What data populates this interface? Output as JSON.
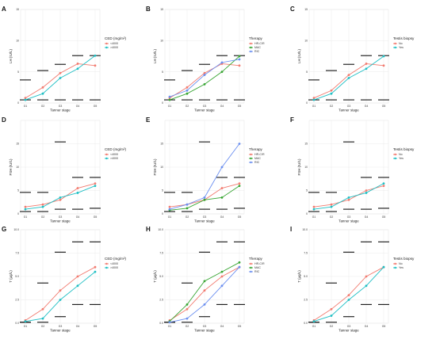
{
  "colors": {
    "ced_low": "#f27b70",
    "ced_high": "#1fbfc4",
    "hr_cr": "#f27b70",
    "mac": "#37a532",
    "ric": "#6b8ff0",
    "testis_no": "#f27b70",
    "testis_yes": "#1fbfc4",
    "reference": "#111111",
    "grid": "#ebebeb"
  },
  "groups": {
    "ced": {
      "title": "CED (mg/m²)",
      "items": [
        {
          "label": "<4000",
          "color": "#f27b70"
        },
        {
          "label": ">4000",
          "color": "#1fbfc4"
        }
      ]
    },
    "therapy": {
      "title": "Therapy",
      "items": [
        {
          "label": "HR-C/R",
          "color": "#f27b70"
        },
        {
          "label": "MAC",
          "color": "#37a532"
        },
        {
          "label": "RIC",
          "color": "#6b8ff0"
        }
      ]
    },
    "testis": {
      "title": "Testis biopsy",
      "items": [
        {
          "label": "No",
          "color": "#f27b70"
        },
        {
          "label": "Yes",
          "color": "#1fbfc4"
        }
      ]
    }
  },
  "chart_data": [
    {
      "panel": "A",
      "type": "line",
      "xlabel": "Tanner stage",
      "ylabel": "LH (IU/L)",
      "categories": [
        "G1",
        "G2",
        "G3",
        "G4",
        "G5"
      ],
      "ylim": [
        0,
        15
      ],
      "yticks": [
        "0",
        "5",
        "10",
        "15"
      ],
      "legend": "ced",
      "series": [
        {
          "name": "<4000",
          "values": [
            0.8,
            2.5,
            4.8,
            6.3,
            6.0
          ]
        },
        {
          "name": ">4000",
          "values": [
            0.5,
            1.5,
            4.0,
            5.5,
            7.6
          ]
        }
      ],
      "reference": [
        {
          "x": 1,
          "low": 0.5,
          "high": 3.7
        },
        {
          "x": 2,
          "low": 0.5,
          "high": 5.2
        },
        {
          "x": 3,
          "low": 0.5,
          "high": 6.2
        },
        {
          "x": 4,
          "low": 0.5,
          "high": 7.6
        },
        {
          "x": 5,
          "low": 0.5,
          "high": 7.6
        }
      ]
    },
    {
      "panel": "B",
      "type": "line",
      "xlabel": "Tanner stage",
      "ylabel": "LH (IU/L)",
      "categories": [
        "G1",
        "G2",
        "G3",
        "G4",
        "G5"
      ],
      "ylim": [
        0,
        15
      ],
      "yticks": [
        "0",
        "5",
        "10",
        "15"
      ],
      "legend": "therapy",
      "series": [
        {
          "name": "HR-C/R",
          "values": [
            0.8,
            2.5,
            4.8,
            6.3,
            6.0
          ]
        },
        {
          "name": "MAC",
          "values": [
            0.5,
            1.5,
            3.0,
            5.0,
            7.5
          ]
        },
        {
          "name": "RIC",
          "values": [
            1.0,
            2.0,
            4.5,
            6.5,
            7.0
          ]
        }
      ],
      "reference": [
        {
          "x": 1,
          "low": 0.5,
          "high": 3.7
        },
        {
          "x": 2,
          "low": 0.5,
          "high": 5.2
        },
        {
          "x": 3,
          "low": 0.5,
          "high": 6.2
        },
        {
          "x": 4,
          "low": 0.5,
          "high": 7.6
        },
        {
          "x": 5,
          "low": 0.5,
          "high": 7.6
        }
      ]
    },
    {
      "panel": "C",
      "type": "line",
      "xlabel": "Tanner stage",
      "ylabel": "LH (IU/L)",
      "categories": [
        "G1",
        "G2",
        "G3",
        "G4",
        "G5"
      ],
      "ylim": [
        0,
        15
      ],
      "yticks": [
        "0",
        "5",
        "10",
        "15"
      ],
      "legend": "testis",
      "series": [
        {
          "name": "No",
          "values": [
            0.8,
            2.0,
            4.5,
            6.3,
            6.0
          ]
        },
        {
          "name": "Yes",
          "values": [
            0.5,
            1.5,
            4.0,
            5.5,
            7.5
          ]
        }
      ],
      "reference": [
        {
          "x": 1,
          "low": 0.5,
          "high": 3.7
        },
        {
          "x": 2,
          "low": 0.5,
          "high": 5.2
        },
        {
          "x": 3,
          "low": 0.5,
          "high": 6.2
        },
        {
          "x": 4,
          "low": 0.5,
          "high": 7.6
        },
        {
          "x": 5,
          "low": 0.5,
          "high": 7.6
        }
      ]
    },
    {
      "panel": "D",
      "type": "line",
      "xlabel": "Tanner stage",
      "ylabel": "FSH (IU/L)",
      "categories": [
        "G1",
        "G2",
        "G3",
        "G4",
        "G5"
      ],
      "ylim": [
        0,
        20
      ],
      "yticks": [
        "0",
        "5",
        "10",
        "15"
      ],
      "legend": "ced",
      "series": [
        {
          "name": "<4000",
          "values": [
            1.5,
            2.0,
            3.0,
            5.5,
            6.5
          ]
        },
        {
          "name": ">4000",
          "values": [
            1.0,
            1.5,
            3.5,
            4.5,
            6.0
          ]
        }
      ],
      "reference": [
        {
          "x": 1,
          "low": 0.5,
          "high": 4.6
        },
        {
          "x": 2,
          "low": 0.5,
          "high": 4.6
        },
        {
          "x": 3,
          "low": 1.0,
          "high": 15.4
        },
        {
          "x": 4,
          "low": 1.0,
          "high": 7.8
        },
        {
          "x": 5,
          "low": 1.2,
          "high": 7.8
        }
      ]
    },
    {
      "panel": "E",
      "type": "line",
      "xlabel": "Tanner stage",
      "ylabel": "FSH (IU/L)",
      "categories": [
        "G1",
        "G2",
        "G3",
        "G4",
        "G5"
      ],
      "ylim": [
        0,
        20
      ],
      "yticks": [
        "0",
        "5",
        "10",
        "15"
      ],
      "legend": "therapy",
      "series": [
        {
          "name": "HR-C/R",
          "values": [
            1.5,
            2.0,
            3.0,
            5.5,
            6.5
          ]
        },
        {
          "name": "MAC",
          "values": [
            0.8,
            1.2,
            3.0,
            3.5,
            6.0
          ]
        },
        {
          "name": "RIC",
          "values": [
            1.0,
            2.0,
            3.5,
            10.0,
            15.0
          ]
        }
      ],
      "reference": [
        {
          "x": 1,
          "low": 0.5,
          "high": 4.6
        },
        {
          "x": 2,
          "low": 0.5,
          "high": 4.6
        },
        {
          "x": 3,
          "low": 1.0,
          "high": 15.4
        },
        {
          "x": 4,
          "low": 1.0,
          "high": 7.8
        },
        {
          "x": 5,
          "low": 1.2,
          "high": 7.8
        }
      ]
    },
    {
      "panel": "F",
      "type": "line",
      "xlabel": "Tanner stage",
      "ylabel": "FSH (IU/L)",
      "categories": [
        "G1",
        "G2",
        "G3",
        "G4",
        "G5"
      ],
      "ylim": [
        0,
        20
      ],
      "yticks": [
        "0",
        "5",
        "10",
        "15"
      ],
      "legend": "testis",
      "series": [
        {
          "name": "No",
          "values": [
            1.5,
            2.0,
            3.0,
            5.0,
            6.0
          ]
        },
        {
          "name": "Yes",
          "values": [
            1.0,
            1.5,
            3.5,
            4.5,
            6.5
          ]
        }
      ],
      "reference": [
        {
          "x": 1,
          "low": 0.5,
          "high": 4.6
        },
        {
          "x": 2,
          "low": 0.5,
          "high": 4.6
        },
        {
          "x": 3,
          "low": 1.0,
          "high": 15.4
        },
        {
          "x": 4,
          "low": 1.0,
          "high": 7.8
        },
        {
          "x": 5,
          "low": 1.2,
          "high": 7.8
        }
      ]
    },
    {
      "panel": "G",
      "type": "line",
      "xlabel": "Tanner stage",
      "ylabel": "T (µg/L)",
      "categories": [
        "G1",
        "G2",
        "G3",
        "G4",
        "G5"
      ],
      "ylim": [
        0,
        10
      ],
      "yticks": [
        "0.0",
        "2.5",
        "5.0",
        "7.5",
        "10.0"
      ],
      "legend": "ced",
      "series": [
        {
          "name": "<4000",
          "values": [
            0.3,
            1.5,
            3.5,
            5.0,
            6.0
          ]
        },
        {
          "name": ">4000",
          "values": [
            0.2,
            0.5,
            2.5,
            4.0,
            5.5
          ]
        }
      ],
      "reference": [
        {
          "x": 1,
          "low": 0.1,
          "high": 0.1
        },
        {
          "x": 2,
          "low": 0.1,
          "high": 4.3
        },
        {
          "x": 3,
          "low": 0.7,
          "high": 7.6
        },
        {
          "x": 4,
          "low": 2.0,
          "high": 8.7
        },
        {
          "x": 5,
          "low": 2.0,
          "high": 8.7
        }
      ]
    },
    {
      "panel": "H",
      "type": "line",
      "xlabel": "Tanner stage",
      "ylabel": "T (µg/L)",
      "categories": [
        "G1",
        "G2",
        "G3",
        "G4",
        "G5"
      ],
      "ylim": [
        0,
        10
      ],
      "yticks": [
        "0.0",
        "2.5",
        "5.0",
        "7.5",
        "10.0"
      ],
      "legend": "therapy",
      "series": [
        {
          "name": "HR-C/R",
          "values": [
            0.3,
            1.5,
            3.5,
            5.0,
            6.0
          ]
        },
        {
          "name": "MAC",
          "values": [
            0.2,
            2.0,
            4.5,
            5.5,
            6.5
          ]
        },
        {
          "name": "RIC",
          "values": [
            0.1,
            0.5,
            2.0,
            4.0,
            6.0
          ]
        }
      ],
      "reference": [
        {
          "x": 1,
          "low": 0.1,
          "high": 0.1
        },
        {
          "x": 2,
          "low": 0.1,
          "high": 4.3
        },
        {
          "x": 3,
          "low": 0.7,
          "high": 7.6
        },
        {
          "x": 4,
          "low": 2.0,
          "high": 8.7
        },
        {
          "x": 5,
          "low": 2.0,
          "high": 8.7
        }
      ]
    },
    {
      "panel": "I",
      "type": "line",
      "xlabel": "Tanner stage",
      "ylabel": "T (µg/L)",
      "categories": [
        "G1",
        "G2",
        "G3",
        "G4",
        "G5"
      ],
      "ylim": [
        0,
        10
      ],
      "yticks": [
        "0.0",
        "2.5",
        "5.0",
        "7.5",
        "10.0"
      ],
      "legend": "testis",
      "series": [
        {
          "name": "No",
          "values": [
            0.3,
            1.5,
            3.0,
            5.0,
            6.0
          ]
        },
        {
          "name": "Yes",
          "values": [
            0.2,
            0.8,
            2.5,
            4.0,
            6.0
          ]
        }
      ],
      "reference": [
        {
          "x": 1,
          "low": 0.1,
          "high": 0.1
        },
        {
          "x": 2,
          "low": 0.1,
          "high": 4.3
        },
        {
          "x": 3,
          "low": 0.7,
          "high": 7.6
        },
        {
          "x": 4,
          "low": 2.0,
          "high": 8.7
        },
        {
          "x": 5,
          "low": 2.0,
          "high": 8.7
        }
      ]
    }
  ]
}
